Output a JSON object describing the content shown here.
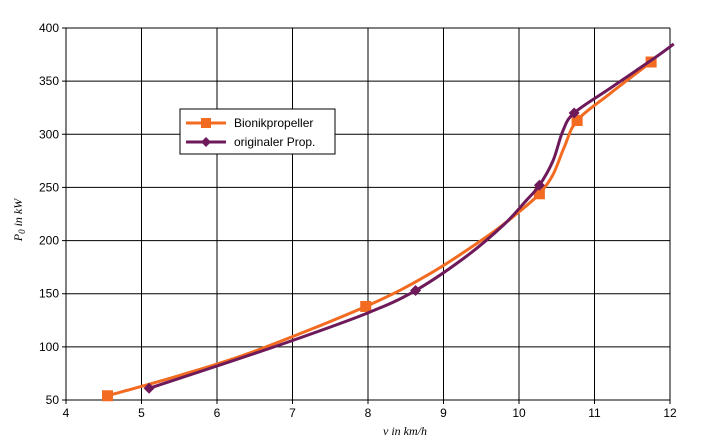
{
  "chart_data": {
    "type": "line",
    "xlabel_prefix": "v in",
    "xlabel_unit": "km/h",
    "ylabel_prefix": "P",
    "ylabel_sub": "0",
    "ylabel_mid": " in ",
    "ylabel_unit": "kW",
    "xlim": [
      4,
      12
    ],
    "ylim": [
      50,
      400
    ],
    "xticks": [
      4,
      5,
      6,
      7,
      8,
      9,
      10,
      11,
      12
    ],
    "yticks": [
      50,
      100,
      150,
      200,
      250,
      300,
      350,
      400
    ],
    "grid": true,
    "legend_position": "upper-left",
    "series": [
      {
        "name": "Bionikpropeller",
        "color": "#f26b21",
        "marker": "square",
        "points": [
          [
            4.55,
            54
          ],
          [
            7.97,
            138
          ],
          [
            10.27,
            244
          ],
          [
            10.77,
            313
          ],
          [
            11.75,
            368
          ]
        ],
        "curve": [
          [
            4.55,
            54
          ],
          [
            5.5,
            73
          ],
          [
            6.5,
            96
          ],
          [
            7.97,
            138
          ],
          [
            8.8,
            168
          ],
          [
            9.6,
            205
          ],
          [
            10.0,
            227
          ],
          [
            10.27,
            244
          ],
          [
            10.45,
            262
          ],
          [
            10.6,
            288
          ],
          [
            10.77,
            313
          ],
          [
            11.2,
            338
          ],
          [
            11.75,
            368
          ]
        ]
      },
      {
        "name": "originaler Prop.",
        "color": "#6e1a5a",
        "marker": "diamond",
        "points": [
          [
            5.1,
            61
          ],
          [
            8.63,
            153
          ],
          [
            10.27,
            252
          ],
          [
            10.73,
            320
          ]
        ],
        "curve": [
          [
            5.1,
            61
          ],
          [
            6.0,
            82
          ],
          [
            7.0,
            106
          ],
          [
            8.0,
            132
          ],
          [
            8.63,
            153
          ],
          [
            9.3,
            185
          ],
          [
            9.8,
            215
          ],
          [
            10.1,
            238
          ],
          [
            10.27,
            252
          ],
          [
            10.45,
            275
          ],
          [
            10.58,
            303
          ],
          [
            10.73,
            320
          ],
          [
            11.2,
            343
          ],
          [
            11.8,
            372
          ],
          [
            12.05,
            385
          ]
        ]
      }
    ]
  }
}
